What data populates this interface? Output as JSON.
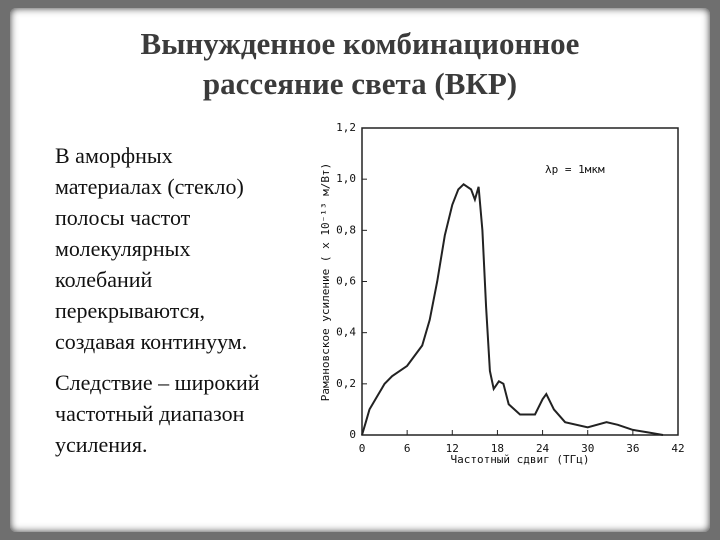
{
  "slide": {
    "title": [
      "Вынужденное комбинационное",
      "рассеяние света (ВКР)"
    ],
    "paragraphs": [
      [
        "В аморфных",
        "материалах (стекло)",
        "полосы частот",
        "молекулярных",
        "колебаний",
        "перекрываются,",
        "создавая континуум."
      ],
      [
        "Следствие – широкий",
        "частотный диапазон",
        "усиления."
      ]
    ]
  },
  "chart_data": {
    "type": "line",
    "xlabel": "Частотный сдвиг (ТГц)",
    "ylabel": "Рамановское усиление ( x 10⁻¹³ м/Вт)",
    "annotation": "λp = 1мкм",
    "color": "#222222",
    "xlim": [
      0,
      42
    ],
    "xticks": [
      0,
      6,
      12,
      18,
      24,
      30,
      36,
      42
    ],
    "ylim": [
      0,
      1.2
    ],
    "yticks": [
      0,
      {
        "value": 0.2,
        "label": "0,2"
      },
      {
        "value": 0.4,
        "label": "0,4"
      },
      {
        "value": 0.6,
        "label": "0,6"
      },
      {
        "value": 0.8,
        "label": "0,8"
      },
      {
        "value": 1,
        "label": "1,0"
      },
      {
        "value": 1.2,
        "label": "1,2"
      }
    ],
    "x": [
      0,
      0.5,
      1,
      2,
      3,
      4,
      6,
      8,
      9,
      10,
      11,
      12,
      12.8,
      13.5,
      14.5,
      15,
      15.5,
      16,
      16.5,
      17,
      17.5,
      18.2,
      18.8,
      19.5,
      21,
      23,
      24,
      24.5,
      25.5,
      27,
      30,
      32.5,
      34,
      36,
      38,
      40
    ],
    "values": [
      0,
      0.05,
      0.1,
      0.15,
      0.2,
      0.23,
      0.27,
      0.35,
      0.45,
      0.6,
      0.78,
      0.9,
      0.96,
      0.98,
      0.96,
      0.92,
      0.97,
      0.8,
      0.5,
      0.25,
      0.18,
      0.21,
      0.2,
      0.12,
      0.08,
      0.08,
      0.14,
      0.16,
      0.1,
      0.05,
      0.03,
      0.05,
      0.04,
      0.02,
      0.01,
      0
    ]
  }
}
